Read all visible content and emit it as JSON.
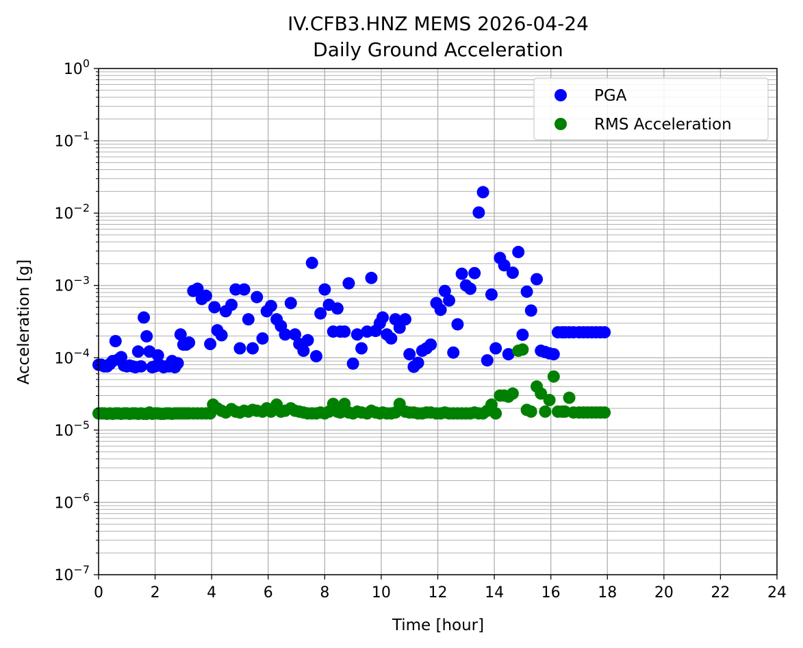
{
  "chart_data": {
    "type": "scatter",
    "title": "IV.CFB3.HNZ MEMS 2026-04-24",
    "subtitle": "Daily Ground Acceleration",
    "xlabel": "Time [hour]",
    "ylabel": "Acceleration [g]",
    "xlim": [
      0,
      24
    ],
    "ylim": [
      1e-07,
      1
    ],
    "yscale": "log",
    "grid": true,
    "legend_position": "top-right",
    "x_ticks": [
      "0",
      "2",
      "4",
      "6",
      "8",
      "10",
      "12",
      "14",
      "16",
      "18",
      "20",
      "22",
      "24"
    ],
    "y_ticks": [
      {
        "base": "10",
        "exp": "0",
        "value": 1
      },
      {
        "base": "10",
        "exp": "−1",
        "value": 0.1
      },
      {
        "base": "10",
        "exp": "−2",
        "value": 0.01
      },
      {
        "base": "10",
        "exp": "−3",
        "value": 0.001
      },
      {
        "base": "10",
        "exp": "−4",
        "value": 0.0001
      },
      {
        "base": "10",
        "exp": "−5",
        "value": 1e-05
      },
      {
        "base": "10",
        "exp": "−6",
        "value": 1e-06
      },
      {
        "base": "10",
        "exp": "−7",
        "value": 1e-07
      }
    ],
    "series": [
      {
        "name": "PGA",
        "color": "#0000ff",
        "x": [
          0.0,
          0.1,
          0.2,
          0.3,
          0.4,
          0.5,
          0.6,
          0.7,
          0.8,
          0.9,
          1.0,
          1.1,
          1.2,
          1.3,
          1.4,
          1.5,
          1.6,
          1.7,
          1.8,
          1.9,
          2.0,
          2.1,
          2.2,
          2.3,
          2.4,
          2.5,
          2.6,
          2.7,
          2.8,
          2.9,
          3.0,
          3.1,
          3.2,
          3.35,
          3.5,
          3.65,
          3.8,
          3.95,
          4.1,
          4.2,
          4.35,
          4.5,
          4.7,
          4.85,
          5.0,
          5.15,
          5.3,
          5.45,
          5.6,
          5.8,
          5.95,
          6.1,
          6.3,
          6.45,
          6.6,
          6.8,
          6.95,
          7.1,
          7.25,
          7.4,
          7.55,
          7.7,
          7.85,
          8.0,
          8.15,
          8.3,
          8.45,
          8.55,
          8.7,
          8.85,
          9.0,
          9.15,
          9.3,
          9.5,
          9.65,
          9.8,
          9.95,
          10.05,
          10.2,
          10.35,
          10.5,
          10.65,
          10.85,
          11.0,
          11.15,
          11.3,
          11.45,
          11.6,
          11.75,
          11.95,
          12.1,
          12.25,
          12.4,
          12.55,
          12.7,
          12.85,
          13.0,
          13.15,
          13.3,
          13.45,
          13.6,
          13.75,
          13.9,
          14.05,
          14.2,
          14.35,
          14.5,
          14.65,
          14.85,
          15.0,
          15.15,
          15.3,
          15.5,
          15.65,
          15.8,
          15.95,
          16.1,
          16.25,
          16.4,
          16.5,
          16.65,
          16.8,
          17.0,
          17.15,
          17.3,
          17.45,
          17.6,
          17.75,
          17.9
        ],
        "y": [
          8e-05,
          8e-05,
          7.6e-05,
          7.6e-05,
          8.2e-05,
          9e-05,
          0.00017,
          9.5e-05,
          0.000102,
          7.8e-05,
          7.6e-05,
          7.8e-05,
          7.6e-05,
          7.4e-05,
          0.000122,
          7.6e-05,
          0.00036,
          0.000198,
          0.000122,
          7.4e-05,
          7.6e-05,
          0.000108,
          7.8e-05,
          7.4e-05,
          7.6e-05,
          7.6e-05,
          9e-05,
          7.4e-05,
          8.4e-05,
          0.00021,
          0.000152,
          0.000152,
          0.000162,
          0.00084,
          0.0009,
          0.00065,
          0.00072,
          0.000155,
          0.0005,
          0.00024,
          0.000205,
          0.00044,
          0.00054,
          0.00088,
          0.000135,
          0.00088,
          0.00034,
          0.000135,
          0.00069,
          0.000185,
          0.00044,
          0.00052,
          0.00034,
          0.000275,
          0.00021,
          0.00057,
          0.00021,
          0.000155,
          0.000125,
          0.000175,
          0.00205,
          0.000105,
          0.00041,
          0.00088,
          0.00054,
          0.00023,
          0.00048,
          0.00023,
          0.00023,
          0.00107,
          8.3e-05,
          0.00021,
          0.000135,
          0.00023,
          0.00127,
          0.000235,
          0.0003,
          0.00036,
          0.00021,
          0.000185,
          0.00034,
          0.00026,
          0.00034,
          0.000112,
          7.5e-05,
          8.5e-05,
          0.000125,
          0.000135,
          0.000152,
          0.00057,
          0.00046,
          0.00084,
          0.00062,
          0.000118,
          0.00029,
          0.00145,
          0.001,
          0.0009,
          0.00148,
          0.0102,
          0.0195,
          9.2e-05,
          0.00075,
          0.000135,
          0.0024,
          0.0019,
          0.000112,
          0.0015,
          0.0029,
          0.000208,
          0.00082,
          0.00045,
          0.00122,
          0.000125,
          0.00012,
          0.000115,
          0.000112,
          0.000225,
          0.000225,
          0.000225,
          0.000225,
          0.000225,
          0.000225,
          0.000225,
          0.000225,
          0.000225,
          0.000225,
          0.000225,
          0.000225
        ]
      },
      {
        "name": "RMS Acceleration",
        "color": "#008000",
        "x": [
          0.0,
          0.1,
          0.2,
          0.3,
          0.4,
          0.5,
          0.6,
          0.7,
          0.8,
          0.9,
          1.0,
          1.1,
          1.2,
          1.3,
          1.4,
          1.5,
          1.6,
          1.7,
          1.8,
          1.9,
          2.0,
          2.1,
          2.2,
          2.3,
          2.4,
          2.5,
          2.6,
          2.7,
          2.8,
          2.9,
          3.0,
          3.1,
          3.2,
          3.35,
          3.5,
          3.65,
          3.8,
          3.95,
          4.05,
          4.2,
          4.35,
          4.5,
          4.7,
          4.85,
          5.0,
          5.15,
          5.3,
          5.45,
          5.6,
          5.8,
          5.95,
          6.1,
          6.3,
          6.45,
          6.6,
          6.8,
          6.95,
          7.1,
          7.25,
          7.4,
          7.55,
          7.7,
          7.85,
          8.0,
          8.15,
          8.3,
          8.45,
          8.55,
          8.7,
          8.85,
          9.0,
          9.15,
          9.3,
          9.5,
          9.65,
          9.8,
          9.95,
          10.05,
          10.2,
          10.35,
          10.5,
          10.65,
          10.85,
          11.0,
          11.15,
          11.3,
          11.45,
          11.6,
          11.75,
          11.95,
          12.1,
          12.25,
          12.4,
          12.55,
          12.7,
          12.85,
          13.0,
          13.15,
          13.3,
          13.45,
          13.6,
          13.75,
          13.9,
          14.05,
          14.2,
          14.35,
          14.5,
          14.65,
          14.85,
          15.0,
          15.15,
          15.3,
          15.5,
          15.65,
          15.8,
          15.95,
          16.1,
          16.25,
          16.4,
          16.5,
          16.65,
          16.8,
          17.0,
          17.15,
          17.3,
          17.45,
          17.6,
          17.75,
          17.9
        ],
        "y": [
          1.7e-05,
          1.7e-05,
          1.7e-05,
          1.68e-05,
          1.7e-05,
          1.68e-05,
          1.7e-05,
          1.7e-05,
          1.68e-05,
          1.7e-05,
          1.7e-05,
          1.68e-05,
          1.7e-05,
          1.7e-05,
          1.68e-05,
          1.7e-05,
          1.68e-05,
          1.68e-05,
          1.75e-05,
          1.68e-05,
          1.7e-05,
          1.7e-05,
          1.68e-05,
          1.68e-05,
          1.7e-05,
          1.7e-05,
          1.68e-05,
          1.7e-05,
          1.7e-05,
          1.7e-05,
          1.7e-05,
          1.7e-05,
          1.7e-05,
          1.7e-05,
          1.7e-05,
          1.7e-05,
          1.7e-05,
          1.7e-05,
          2.25e-05,
          2e-05,
          1.85e-05,
          1.75e-05,
          1.95e-05,
          1.8e-05,
          1.75e-05,
          1.85e-05,
          1.8e-05,
          1.9e-05,
          1.85e-05,
          1.8e-05,
          2e-05,
          1.8e-05,
          2.25e-05,
          1.8e-05,
          1.85e-05,
          2e-05,
          1.85e-05,
          1.8e-05,
          1.75e-05,
          1.7e-05,
          1.7e-05,
          1.7e-05,
          1.75e-05,
          1.7e-05,
          1.8e-05,
          2.3e-05,
          1.8e-05,
          1.75e-05,
          2.3e-05,
          1.75e-05,
          1.7e-05,
          1.8e-05,
          1.75e-05,
          1.7e-05,
          1.85e-05,
          1.75e-05,
          1.7e-05,
          1.75e-05,
          1.7e-05,
          1.7e-05,
          1.75e-05,
          2.3e-05,
          1.8e-05,
          1.75e-05,
          1.75e-05,
          1.7e-05,
          1.7e-05,
          1.75e-05,
          1.75e-05,
          1.7e-05,
          1.7e-05,
          1.75e-05,
          1.7e-05,
          1.7e-05,
          1.7e-05,
          1.7e-05,
          1.7e-05,
          1.7e-05,
          1.75e-05,
          1.7e-05,
          1.7e-05,
          1.85e-05,
          2.25e-05,
          1.7e-05,
          3e-05,
          3e-05,
          2.9e-05,
          3.2e-05,
          0.000125,
          0.00013,
          1.9e-05,
          1.8e-05,
          4e-05,
          3.2e-05,
          1.8e-05,
          2.6e-05,
          5.5e-05,
          1.8e-05,
          1.8e-05,
          1.8e-05,
          2.8e-05,
          1.75e-05,
          1.75e-05,
          1.75e-05,
          1.75e-05,
          1.75e-05,
          1.75e-05,
          1.75e-05,
          1.75e-05
        ]
      }
    ]
  }
}
